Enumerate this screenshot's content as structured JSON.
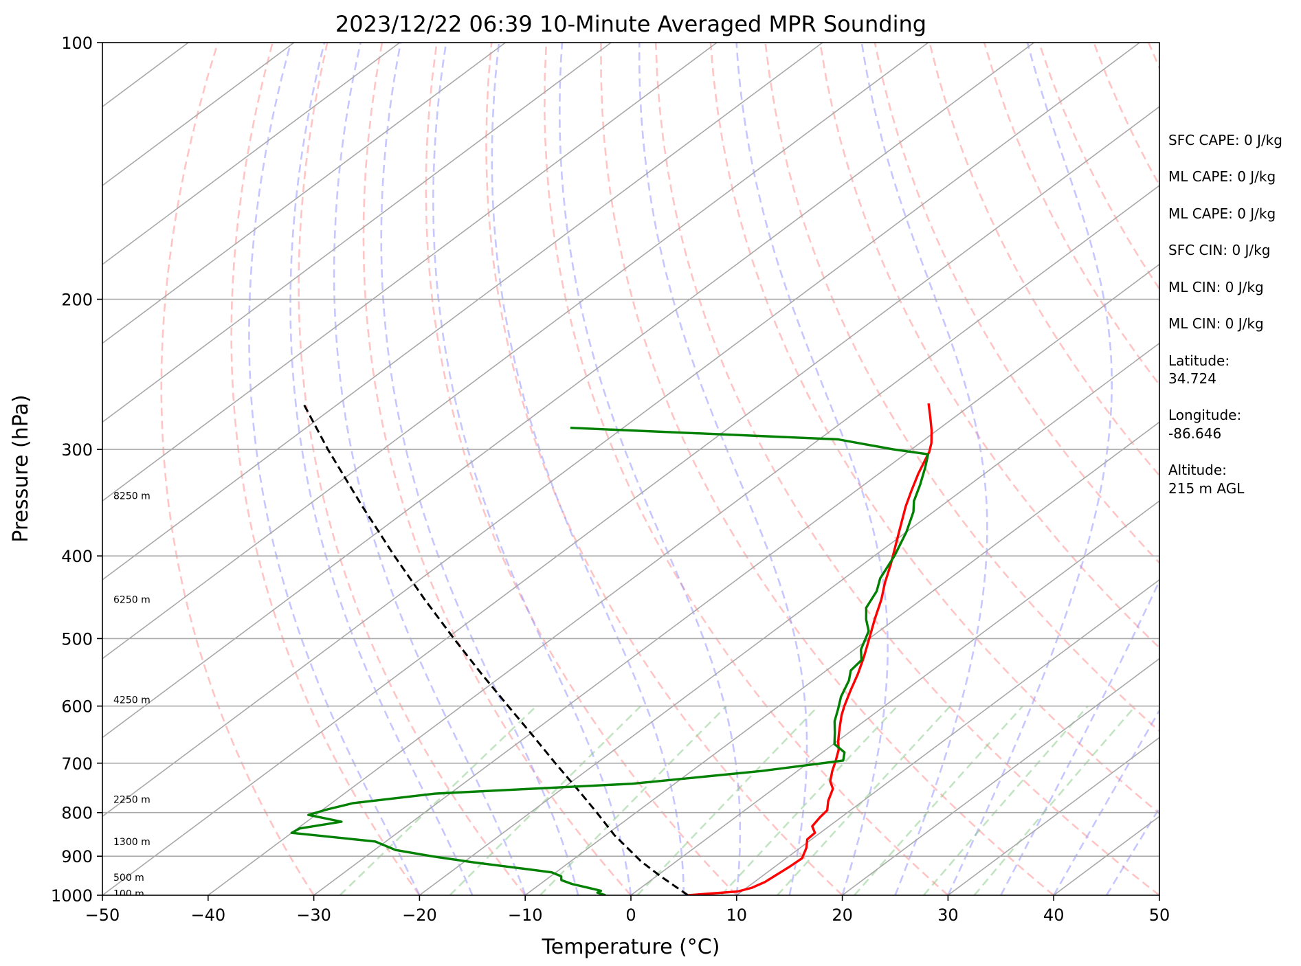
{
  "chart_data": {
    "type": "line",
    "title": "2023/12/22 06:39 10-Minute Averaged MPR Sounding",
    "xlabel": "Temperature (°C)",
    "ylabel": "Pressure (hPa)",
    "xlim": [
      -50,
      50
    ],
    "ylim": [
      1000,
      100
    ],
    "y_scale": "log",
    "skew": "skew-T",
    "x_ticks": [
      "−50",
      "−40",
      "−30",
      "−20",
      "−10",
      "0",
      "10",
      "20",
      "30",
      "40",
      "50"
    ],
    "x_tick_values": [
      -50,
      -40,
      -30,
      -20,
      -10,
      0,
      10,
      20,
      30,
      40,
      50
    ],
    "y_ticks": [
      "100",
      "200",
      "300",
      "400",
      "500",
      "600",
      "700",
      "800",
      "900",
      "1000"
    ],
    "y_tick_values": [
      100,
      200,
      300,
      400,
      500,
      600,
      700,
      800,
      900,
      1000
    ],
    "grid": true,
    "height_labels": [
      {
        "text": "100 m",
        "p": 995
      },
      {
        "text": "500 m",
        "p": 953
      },
      {
        "text": "1300 m",
        "p": 865
      },
      {
        "text": "2250 m",
        "p": 772
      },
      {
        "text": "4250 m",
        "p": 590
      },
      {
        "text": "6250 m",
        "p": 450
      },
      {
        "text": "8250 m",
        "p": 340
      }
    ],
    "series": [
      {
        "role": "temperature",
        "color": "#ff0000",
        "points": [
          {
            "p": 1000,
            "t": 5.4
          },
          {
            "p": 990,
            "t": 9.6
          },
          {
            "p": 980,
            "t": 10.5
          },
          {
            "p": 965,
            "t": 11.0
          },
          {
            "p": 945,
            "t": 11.2
          },
          {
            "p": 925,
            "t": 11.4
          },
          {
            "p": 905,
            "t": 11.5
          },
          {
            "p": 880,
            "t": 10.6
          },
          {
            "p": 860,
            "t": 9.6
          },
          {
            "p": 845,
            "t": 9.5
          },
          {
            "p": 830,
            "t": 8.4
          },
          {
            "p": 810,
            "t": 8.0
          },
          {
            "p": 795,
            "t": 7.8
          },
          {
            "p": 775,
            "t": 6.7
          },
          {
            "p": 750,
            "t": 5.6
          },
          {
            "p": 735,
            "t": 4.4
          },
          {
            "p": 715,
            "t": 3.3
          },
          {
            "p": 695,
            "t": 2.3
          },
          {
            "p": 675,
            "t": 1.2
          },
          {
            "p": 660,
            "t": 0.1
          },
          {
            "p": 645,
            "t": -0.9
          },
          {
            "p": 630,
            "t": -1.9
          },
          {
            "p": 615,
            "t": -2.9
          },
          {
            "p": 600,
            "t": -3.8
          },
          {
            "p": 575,
            "t": -5.2
          },
          {
            "p": 550,
            "t": -6.6
          },
          {
            "p": 525,
            "t": -8.2
          },
          {
            "p": 500,
            "t": -10.0
          },
          {
            "p": 475,
            "t": -11.9
          },
          {
            "p": 450,
            "t": -13.8
          },
          {
            "p": 430,
            "t": -15.6
          },
          {
            "p": 410,
            "t": -17.3
          },
          {
            "p": 390,
            "t": -19.2
          },
          {
            "p": 370,
            "t": -21.2
          },
          {
            "p": 350,
            "t": -23.3
          },
          {
            "p": 335,
            "t": -24.8
          },
          {
            "p": 320,
            "t": -26.3
          },
          {
            "p": 302,
            "t": -28.0
          },
          {
            "p": 295,
            "t": -28.9
          },
          {
            "p": 285,
            "t": -30.5
          },
          {
            "p": 275,
            "t": -32.3
          },
          {
            "p": 265,
            "t": -34.2
          }
        ]
      },
      {
        "role": "dewpoint",
        "color": "#008000",
        "points": [
          {
            "p": 1000,
            "t": -2.4
          },
          {
            "p": 993,
            "t": -3.5
          },
          {
            "p": 988,
            "t": -3.4
          },
          {
            "p": 982,
            "t": -4.6
          },
          {
            "p": 970,
            "t": -7.0
          },
          {
            "p": 960,
            "t": -8.5
          },
          {
            "p": 950,
            "t": -9.0
          },
          {
            "p": 940,
            "t": -10.4
          },
          {
            "p": 930,
            "t": -13.8
          },
          {
            "p": 915,
            "t": -19.1
          },
          {
            "p": 900,
            "t": -23.8
          },
          {
            "p": 885,
            "t": -28.0
          },
          {
            "p": 865,
            "t": -31.0
          },
          {
            "p": 845,
            "t": -40.0
          },
          {
            "p": 835,
            "t": -39.8
          },
          {
            "p": 820,
            "t": -36.7
          },
          {
            "p": 805,
            "t": -40.7
          },
          {
            "p": 793,
            "t": -39.6
          },
          {
            "p": 780,
            "t": -38.0
          },
          {
            "p": 760,
            "t": -31.4
          },
          {
            "p": 740,
            "t": -14.0
          },
          {
            "p": 715,
            "t": -3.4
          },
          {
            "p": 695,
            "t": 3.0
          },
          {
            "p": 680,
            "t": 2.1
          },
          {
            "p": 665,
            "t": 0.1
          },
          {
            "p": 645,
            "t": -1.3
          },
          {
            "p": 625,
            "t": -2.8
          },
          {
            "p": 605,
            "t": -4.0
          },
          {
            "p": 585,
            "t": -5.3
          },
          {
            "p": 560,
            "t": -6.6
          },
          {
            "p": 545,
            "t": -7.7
          },
          {
            "p": 530,
            "t": -8.0
          },
          {
            "p": 515,
            "t": -9.4
          },
          {
            "p": 490,
            "t": -11.0
          },
          {
            "p": 475,
            "t": -12.7
          },
          {
            "p": 460,
            "t": -14.2
          },
          {
            "p": 440,
            "t": -15.3
          },
          {
            "p": 425,
            "t": -16.6
          },
          {
            "p": 400,
            "t": -18.1
          },
          {
            "p": 375,
            "t": -20.0
          },
          {
            "p": 355,
            "t": -21.9
          },
          {
            "p": 345,
            "t": -23.2
          },
          {
            "p": 330,
            "t": -24.7
          },
          {
            "p": 315,
            "t": -26.4
          },
          {
            "p": 304,
            "t": -27.8
          },
          {
            "p": 300,
            "t": -31.7
          },
          {
            "p": 292,
            "t": -38.2
          },
          {
            "p": 283,
            "t": -65.0
          }
        ]
      },
      {
        "role": "parcel",
        "color": "#000000",
        "points": [
          {
            "p": 1000,
            "t": 5.4
          },
          {
            "p": 950,
            "t": 0.4
          },
          {
            "p": 913,
            "t": -3.3
          },
          {
            "p": 850,
            "t": -9.2
          },
          {
            "p": 800,
            "t": -13.7
          },
          {
            "p": 750,
            "t": -18.6
          },
          {
            "p": 700,
            "t": -23.9
          },
          {
            "p": 650,
            "t": -29.5
          },
          {
            "p": 600,
            "t": -35.6
          },
          {
            "p": 550,
            "t": -42.2
          },
          {
            "p": 500,
            "t": -49.3
          },
          {
            "p": 450,
            "t": -57.0
          },
          {
            "p": 400,
            "t": -65.4
          },
          {
            "p": 350,
            "t": -74.7
          },
          {
            "p": 300,
            "t": -85.2
          },
          {
            "p": 266,
            "t": -93.1
          }
        ]
      }
    ]
  },
  "info_panel": {
    "sfc_cape": "SFC CAPE: 0 J/kg",
    "ml_cape_1": "ML CAPE: 0 J/kg",
    "ml_cape_2": "ML CAPE: 0 J/kg",
    "sfc_cin": "SFC CIN: 0 J/kg",
    "ml_cin_1": "ML CIN: 0 J/kg",
    "ml_cin_2": "ML CIN: 0 J/kg",
    "latitude_label": "Latitude:",
    "latitude_value": "34.724",
    "longitude_label": "Longitude:",
    "longitude_value": "-86.646",
    "altitude_label": "Altitude:",
    "altitude_value": "215 m AGL"
  }
}
